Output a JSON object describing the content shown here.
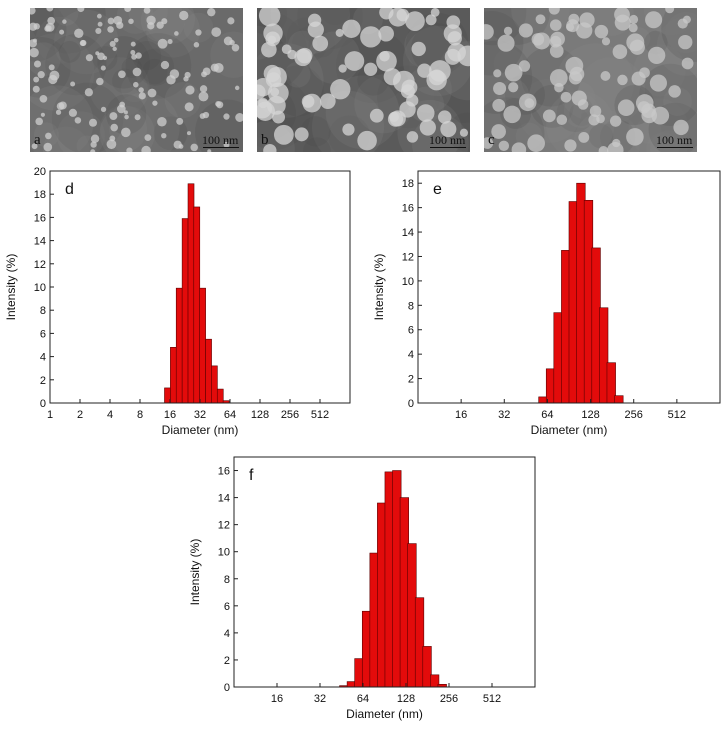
{
  "tem_panels": [
    {
      "label": "a",
      "scale": "100 nm",
      "colors": {
        "bg": "#6a6a6a",
        "particle": "#cfcfcf"
      }
    },
    {
      "label": "b",
      "scale": "100 nm",
      "colors": {
        "bg": "#5a5a5a",
        "particle": "#d6d6d6"
      }
    },
    {
      "label": "c",
      "scale": "100 nm",
      "colors": {
        "bg": "#7a7a7a",
        "particle": "#c8c8c8"
      }
    }
  ],
  "chart_data": [
    {
      "type": "bar",
      "panel_label": "d",
      "xlabel": "Diameter (nm)",
      "ylabel": "Intensity (%)",
      "x_scale": "log2",
      "xlim": [
        1,
        1024
      ],
      "x_ticks": [
        "1",
        "2",
        "4",
        "8",
        "16",
        "32",
        "64",
        "128",
        "256",
        "512"
      ],
      "x_tick_values": [
        1,
        2,
        4,
        8,
        16,
        32,
        64,
        128,
        256,
        512
      ],
      "ylim": [
        0,
        20
      ],
      "y_ticks": [
        "0",
        "2",
        "4",
        "6",
        "8",
        "10",
        "12",
        "14",
        "16",
        "18",
        "20"
      ],
      "y_tick_values": [
        0,
        2,
        4,
        6,
        8,
        10,
        12,
        14,
        16,
        18,
        20
      ],
      "x": [
        15.1,
        17.3,
        19.8,
        22.7,
        26.0,
        29.7,
        34.0,
        39.0,
        44.6,
        51.1,
        58.5
      ],
      "values": [
        1.3,
        4.8,
        9.9,
        15.9,
        18.9,
        16.9,
        9.9,
        5.5,
        3.2,
        1.2,
        0.2
      ],
      "colors": {
        "bar": "#e30b0b"
      }
    },
    {
      "type": "bar",
      "panel_label": "e",
      "xlabel": "Diameter (nm)",
      "ylabel": "Intensity (%)",
      "x_scale": "log2",
      "xlim": [
        8,
        1024
      ],
      "x_ticks": [
        "16",
        "32",
        "64",
        "128",
        "256",
        "512"
      ],
      "x_tick_values": [
        16,
        32,
        64,
        128,
        256,
        512
      ],
      "ylim": [
        0,
        19
      ],
      "y_ticks": [
        "0",
        "2",
        "4",
        "6",
        "8",
        "10",
        "12",
        "14",
        "16",
        "18"
      ],
      "y_tick_values": [
        0,
        2,
        4,
        6,
        8,
        10,
        12,
        14,
        16,
        18
      ],
      "x": [
        59.6,
        67.3,
        76.0,
        85.9,
        97.0,
        109.6,
        123.8,
        139.9,
        158.0,
        178.5,
        201.6,
        227.8,
        257.3
      ],
      "values": [
        0.5,
        2.8,
        7.4,
        12.5,
        16.5,
        18.0,
        16.6,
        12.7,
        7.8,
        3.3,
        0.6,
        0,
        0
      ],
      "colors": {
        "bar": "#e30b0b"
      }
    },
    {
      "type": "bar",
      "panel_label": "f",
      "xlabel": "Diameter (nm)",
      "ylabel": "Intensity (%)",
      "x_scale": "log2",
      "xlim": [
        8,
        1024
      ],
      "x_ticks": [
        "16",
        "32",
        "64",
        "128",
        "256",
        "512"
      ],
      "x_tick_values": [
        16,
        32,
        64,
        128,
        256,
        512
      ],
      "ylim": [
        0,
        17
      ],
      "y_ticks": [
        "0",
        "2",
        "4",
        "6",
        "8",
        "10",
        "12",
        "14",
        "16"
      ],
      "y_tick_values": [
        0,
        2,
        4,
        6,
        8,
        10,
        12,
        14,
        16
      ],
      "x": [
        47.0,
        53.1,
        60.0,
        67.8,
        76.6,
        86.5,
        97.7,
        110.4,
        124.7,
        140.9,
        159.2,
        179.8,
        203.1,
        229.5,
        259.3
      ],
      "values": [
        0.1,
        0.4,
        2.1,
        5.6,
        9.9,
        13.6,
        15.9,
        16.0,
        14.0,
        10.6,
        6.6,
        3.0,
        0.9,
        0.2,
        0
      ],
      "colors": {
        "bar": "#e30b0b"
      }
    }
  ]
}
